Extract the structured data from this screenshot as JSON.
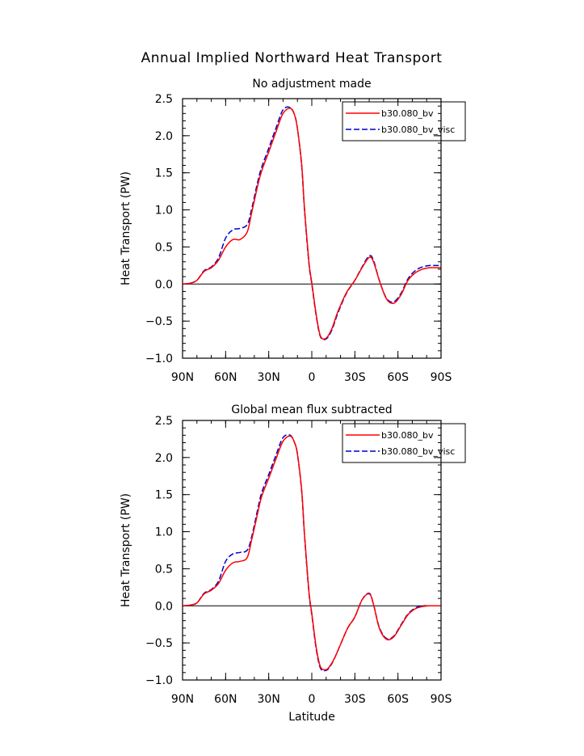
{
  "title": "Annual Implied Northward Heat Transport",
  "colors": {
    "series_1": "#ff0000",
    "series_2": "#0000cc",
    "zero_line": "#000000"
  },
  "chart_data": [
    {
      "type": "line",
      "subtitle": "No adjustment made",
      "xlabel": "",
      "ylabel": "Heat Transport (PW)",
      "xlim": [
        90,
        -90
      ],
      "ylim": [
        -1.0,
        2.5
      ],
      "xticks": [
        90,
        60,
        30,
        0,
        -30,
        -60,
        -90
      ],
      "xtick_labels": [
        "90N",
        "60N",
        "30N",
        "0",
        "30S",
        "60S",
        "90S"
      ],
      "yticks": [
        -1.0,
        -0.5,
        0.0,
        0.5,
        1.0,
        1.5,
        2.0,
        2.5
      ],
      "ytick_labels": [
        "−1.0",
        "−0.5",
        "0.0",
        "0.5",
        "1.0",
        "1.5",
        "2.0",
        "2.5"
      ],
      "grid": false,
      "legend_position": "top-right",
      "series": [
        {
          "name": "b30.080_bv",
          "style": "solid",
          "x": [
            90,
            85,
            80,
            75,
            70,
            65,
            60,
            55,
            50,
            45,
            42,
            38,
            35,
            30,
            25,
            20,
            15,
            12,
            10,
            7,
            5,
            2,
            0,
            -3,
            -6,
            -10,
            -14,
            -18,
            -24,
            -30,
            -35,
            -40,
            -43,
            -47,
            -52,
            -57,
            -62,
            -67,
            -72,
            -77,
            -82,
            -86,
            -90
          ],
          "y": [
            0.0,
            0.01,
            0.05,
            0.17,
            0.22,
            0.32,
            0.5,
            0.6,
            0.6,
            0.7,
            0.95,
            1.3,
            1.52,
            1.78,
            2.05,
            2.3,
            2.37,
            2.28,
            2.1,
            1.6,
            1.0,
            0.3,
            0.02,
            -0.4,
            -0.7,
            -0.73,
            -0.6,
            -0.38,
            -0.12,
            0.05,
            0.22,
            0.36,
            0.3,
            0.05,
            -0.2,
            -0.26,
            -0.15,
            0.05,
            0.15,
            0.2,
            0.22,
            0.22,
            0.22
          ]
        },
        {
          "name": "b30.080_bv_visc",
          "style": "dashed",
          "x": [
            90,
            85,
            80,
            75,
            70,
            65,
            60,
            55,
            50,
            45,
            42,
            38,
            35,
            30,
            25,
            20,
            15,
            12,
            10,
            7,
            5,
            2,
            0,
            -3,
            -6,
            -10,
            -14,
            -18,
            -24,
            -30,
            -35,
            -40,
            -43,
            -47,
            -52,
            -57,
            -62,
            -67,
            -72,
            -77,
            -82,
            -86,
            -90
          ],
          "y": [
            0.0,
            0.01,
            0.05,
            0.18,
            0.23,
            0.35,
            0.62,
            0.73,
            0.75,
            0.8,
            1.0,
            1.35,
            1.57,
            1.83,
            2.1,
            2.35,
            2.38,
            2.28,
            2.1,
            1.58,
            0.98,
            0.28,
            0.0,
            -0.42,
            -0.71,
            -0.74,
            -0.62,
            -0.4,
            -0.13,
            0.05,
            0.23,
            0.38,
            0.32,
            0.05,
            -0.19,
            -0.24,
            -0.13,
            0.07,
            0.18,
            0.23,
            0.25,
            0.25,
            0.25
          ]
        }
      ]
    },
    {
      "type": "line",
      "subtitle": "Global mean flux subtracted",
      "xlabel": "Latitude",
      "ylabel": "Heat Transport (PW)",
      "xlim": [
        90,
        -90
      ],
      "ylim": [
        -1.0,
        2.5
      ],
      "xticks": [
        90,
        60,
        30,
        0,
        -30,
        -60,
        -90
      ],
      "xtick_labels": [
        "90N",
        "60N",
        "30N",
        "0",
        "30S",
        "60S",
        "90S"
      ],
      "yticks": [
        -1.0,
        -0.5,
        0.0,
        0.5,
        1.0,
        1.5,
        2.0,
        2.5
      ],
      "ytick_labels": [
        "−1.0",
        "−0.5",
        "0.0",
        "0.5",
        "1.0",
        "1.5",
        "2.0",
        "2.5"
      ],
      "grid": false,
      "legend_position": "top-right",
      "series": [
        {
          "name": "b30.080_bv",
          "style": "solid",
          "x": [
            90,
            85,
            80,
            75,
            70,
            65,
            60,
            55,
            50,
            45,
            42,
            38,
            35,
            30,
            25,
            20,
            15,
            12,
            10,
            7,
            5,
            2,
            0,
            -3,
            -6,
            -10,
            -13,
            -16,
            -20,
            -25,
            -30,
            -35,
            -40,
            -43,
            -47,
            -52,
            -57,
            -62,
            -67,
            -72,
            -77,
            -82,
            -86,
            -90
          ],
          "y": [
            0.0,
            0.01,
            0.04,
            0.16,
            0.21,
            0.3,
            0.48,
            0.58,
            0.6,
            0.65,
            0.88,
            1.22,
            1.47,
            1.72,
            1.98,
            2.22,
            2.29,
            2.2,
            2.05,
            1.55,
            0.95,
            0.2,
            -0.1,
            -0.55,
            -0.82,
            -0.86,
            -0.8,
            -0.7,
            -0.52,
            -0.3,
            -0.15,
            0.08,
            0.16,
            0.02,
            -0.3,
            -0.45,
            -0.42,
            -0.27,
            -0.12,
            -0.04,
            -0.01,
            0.0,
            0.0,
            0.0
          ]
        },
        {
          "name": "b30.080_bv_visc",
          "style": "dashed",
          "x": [
            90,
            85,
            80,
            75,
            70,
            65,
            60,
            55,
            50,
            45,
            42,
            38,
            35,
            30,
            25,
            20,
            15,
            12,
            10,
            7,
            5,
            2,
            0,
            -3,
            -6,
            -10,
            -13,
            -16,
            -20,
            -25,
            -30,
            -35,
            -40,
            -43,
            -47,
            -52,
            -57,
            -62,
            -67,
            -72,
            -77,
            -82,
            -86,
            -90
          ],
          "y": [
            0.0,
            0.01,
            0.04,
            0.17,
            0.22,
            0.33,
            0.6,
            0.7,
            0.72,
            0.75,
            0.92,
            1.27,
            1.52,
            1.77,
            2.03,
            2.27,
            2.3,
            2.2,
            2.05,
            1.53,
            0.93,
            0.18,
            -0.12,
            -0.57,
            -0.84,
            -0.87,
            -0.81,
            -0.7,
            -0.52,
            -0.3,
            -0.15,
            0.08,
            0.17,
            0.02,
            -0.29,
            -0.44,
            -0.41,
            -0.26,
            -0.11,
            -0.03,
            0.0,
            0.0,
            0.0,
            0.0
          ]
        }
      ]
    }
  ]
}
